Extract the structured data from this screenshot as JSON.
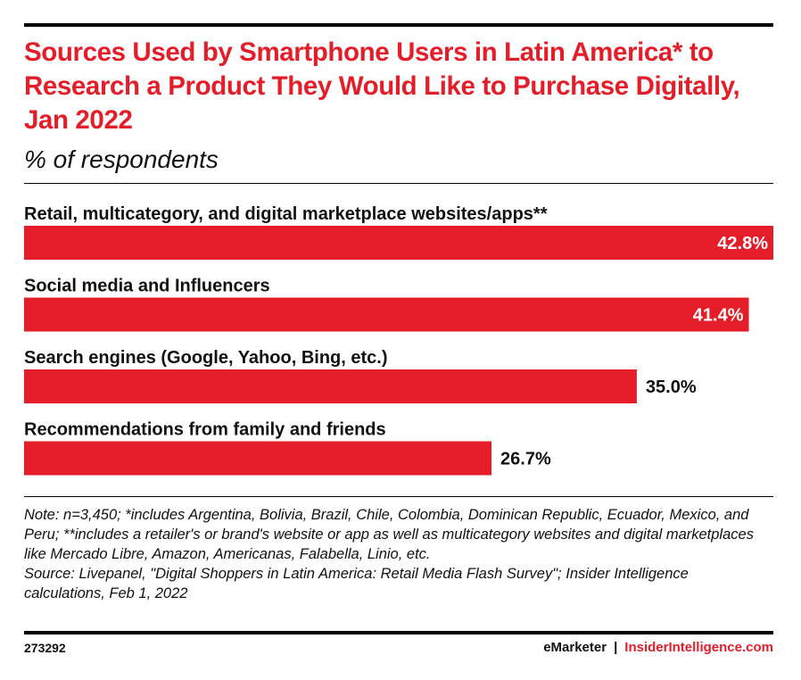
{
  "chart_data": {
    "type": "bar",
    "orientation": "horizontal",
    "title": "Sources Used by Smartphone Users in Latin America* to Research a Product They Would Like to Purchase Digitally, Jan 2022",
    "subtitle": "% of respondents",
    "categories": [
      "Retail, multicategory, and digital marketplace websites/apps**",
      "Social media and Influencers",
      "Search engines (Google, Yahoo, Bing, etc.)",
      "Recommendations from family and friends"
    ],
    "values": [
      42.8,
      41.4,
      35.0,
      26.7
    ],
    "value_labels": [
      "42.8%",
      "41.4%",
      "35.0%",
      "26.7%"
    ],
    "xlim": [
      0,
      42.8
    ],
    "grid": false,
    "legend": "none",
    "bar_color": "#e41d29"
  },
  "footer": {
    "note": "Note: n=3,450; *includes Argentina, Bolivia, Brazil, Chile, Colombia, Dominican Republic, Ecuador, Mexico, and Peru; **includes a retailer's or brand's website or app as well as multicategory websites and digital marketplaces like Mercado Libre, Amazon, Americanas, Falabella, Linio, etc.",
    "source": "Source: Livepanel, \"Digital Shoppers in Latin America: Retail Media Flash Survey\"; Insider Intelligence calculations, Feb 1, 2022",
    "chart_id": "273292",
    "brand_left": "eMarketer",
    "brand_separator": "|",
    "brand_right": "InsiderIntelligence.com"
  },
  "colors": {
    "accent": "#e41d29",
    "text": "#111111"
  }
}
